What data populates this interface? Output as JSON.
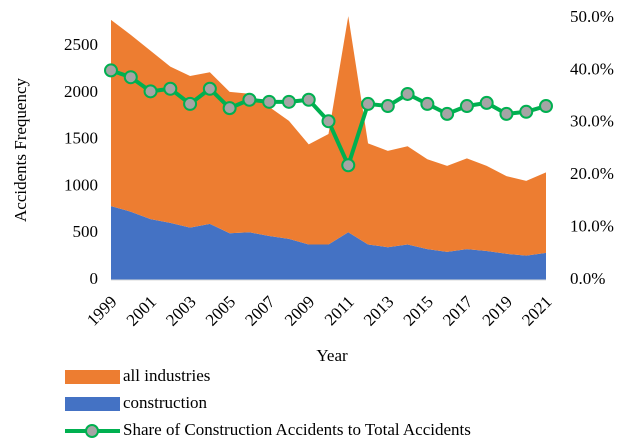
{
  "chart_data": {
    "type": "stacked_area_line",
    "x_label": "Year",
    "y_label": "Accidents Frequency",
    "categories": [
      "1999",
      null,
      "2001",
      null,
      "2003",
      null,
      "2005",
      null,
      "2007",
      null,
      "2009",
      null,
      "2011",
      null,
      "2013",
      null,
      "2015",
      null,
      "2017",
      null,
      "2019",
      null,
      "2021"
    ],
    "series": [
      {
        "name": "construction",
        "color": "#4472c4",
        "values": [
          790,
          730,
          650,
          610,
          560,
          600,
          500,
          510,
          470,
          440,
          380,
          380,
          510,
          380,
          350,
          380,
          330,
          300,
          330,
          310,
          280,
          260,
          290
        ]
      },
      {
        "name": "all industries",
        "color": "#ed7d31",
        "values": [
          1990,
          1890,
          1800,
          1670,
          1620,
          1620,
          1510,
          1480,
          1380,
          1260,
          1070,
          1180,
          2310,
          1080,
          1030,
          1050,
          960,
          920,
          970,
          910,
          830,
          800,
          860
        ]
      },
      {
        "name": "Share of Construction Accidents to Total Accidents",
        "color": "#00b050",
        "marker_color": "#a5a5a5",
        "axis": "y2",
        "values": [
          40.0,
          38.7,
          36.0,
          36.5,
          33.6,
          36.5,
          32.8,
          34.4,
          34.0,
          34.0,
          34.4,
          30.3,
          21.9,
          33.6,
          33.2,
          35.5,
          33.6,
          31.7,
          33.2,
          33.8,
          31.7,
          32.1,
          33.2
        ]
      }
    ],
    "ylim": [
      0,
      2800
    ],
    "yticks": [
      0,
      500,
      1000,
      1500,
      2000,
      2500
    ],
    "y2lim": [
      0,
      50
    ],
    "y2ticks": [
      {
        "value": 0,
        "label": "0.0%"
      },
      {
        "value": 10,
        "label": "10.0%"
      },
      {
        "value": 20,
        "label": "20.0%"
      },
      {
        "value": 30,
        "label": "30.0%"
      },
      {
        "value": 40,
        "label": "40.0%"
      },
      {
        "value": 50,
        "label": "50.0%"
      }
    ],
    "legend": "bottom"
  }
}
